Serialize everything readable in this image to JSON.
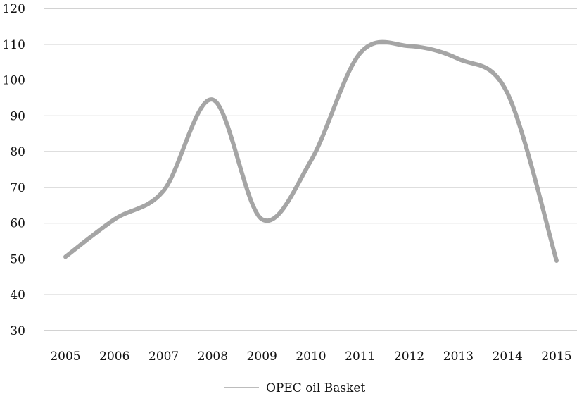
{
  "chart_data": {
    "type": "line",
    "title": "",
    "xlabel": "",
    "ylabel": "",
    "categories": [
      "2005",
      "2006",
      "2007",
      "2008",
      "2009",
      "2010",
      "2011",
      "2012",
      "2013",
      "2014",
      "2015"
    ],
    "ylim": [
      30,
      120
    ],
    "yticks": [
      30,
      40,
      50,
      60,
      70,
      80,
      90,
      100,
      110,
      120
    ],
    "grid": true,
    "legend_position": "bottom",
    "series": [
      {
        "name": "OPEC oil Basket",
        "color": "#a5a5a5",
        "smooth": true,
        "values": [
          50.6,
          61.1,
          69.1,
          94.5,
          61.1,
          77.5,
          107.5,
          109.5,
          105.9,
          96.3,
          49.5
        ]
      }
    ]
  }
}
